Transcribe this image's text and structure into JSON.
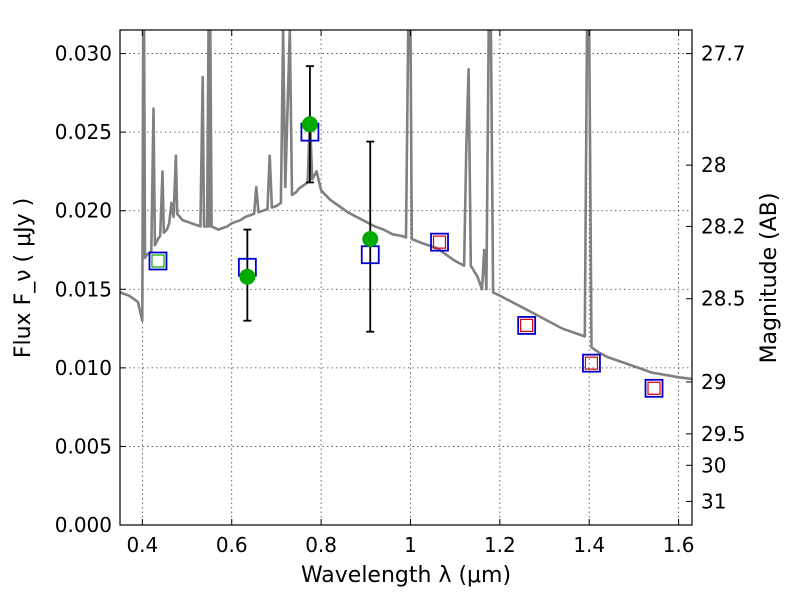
{
  "chart_data": {
    "type": "scatter",
    "xlabel": "Wavelength  λ (μm)",
    "ylabel": "Flux  F_ν  ( μJy )",
    "ylabel_right": "Magnitude (AB)",
    "xlim": [
      0.35,
      1.63
    ],
    "ylim": [
      0.0,
      0.0315
    ],
    "grid": true,
    "x_ticks": [
      0.4,
      0.6,
      0.8,
      1.0,
      1.2,
      1.4,
      1.6
    ],
    "x_tick_labels": [
      "0.4",
      "0.6",
      "0.8",
      "1",
      "1.2",
      "1.4",
      "1.6"
    ],
    "y_ticks": [
      0.0,
      0.005,
      0.01,
      0.015,
      0.02,
      0.025,
      0.03
    ],
    "y_tick_labels": [
      "0.000",
      "0.005",
      "0.010",
      "0.015",
      "0.020",
      "0.025",
      "0.030"
    ],
    "right_ticks": [
      {
        "label": "27.7",
        "flux": 0.03
      },
      {
        "label": "28",
        "flux": 0.0229
      },
      {
        "label": "28.2",
        "flux": 0.019
      },
      {
        "label": "28.5",
        "flux": 0.0144
      },
      {
        "label": "29",
        "flux": 0.0091
      },
      {
        "label": "29.5",
        "flux": 0.0058
      },
      {
        "label": "30",
        "flux": 0.0038
      },
      {
        "label": "31",
        "flux": 0.0015
      }
    ],
    "colors": {
      "model": "#808080",
      "observed": "#00aa00",
      "errorbar": "#000000",
      "model_photometry_box": "#0000cc",
      "inner_box_green": "#00aa00",
      "inner_box_red": "#dd0000"
    },
    "series": [
      {
        "name": "model_spectrum",
        "type": "line",
        "points": [
          [
            0.35,
            0.0148
          ],
          [
            0.36,
            0.0147
          ],
          [
            0.37,
            0.0146
          ],
          [
            0.38,
            0.0144
          ],
          [
            0.39,
            0.0142
          ],
          [
            0.395,
            0.0136
          ],
          [
            0.4,
            0.013
          ],
          [
            0.402,
            0.0315
          ],
          [
            0.404,
            0.0315
          ],
          [
            0.406,
            0.017
          ],
          [
            0.41,
            0.0172
          ],
          [
            0.42,
            0.0174
          ],
          [
            0.425,
            0.0265
          ],
          [
            0.428,
            0.0178
          ],
          [
            0.435,
            0.0182
          ],
          [
            0.44,
            0.0184
          ],
          [
            0.445,
            0.0225
          ],
          [
            0.448,
            0.0186
          ],
          [
            0.455,
            0.0188
          ],
          [
            0.46,
            0.0192
          ],
          [
            0.465,
            0.0205
          ],
          [
            0.47,
            0.0196
          ],
          [
            0.475,
            0.0235
          ],
          [
            0.478,
            0.0198
          ],
          [
            0.49,
            0.0194
          ],
          [
            0.5,
            0.0193
          ],
          [
            0.51,
            0.0192
          ],
          [
            0.52,
            0.0191
          ],
          [
            0.53,
            0.019
          ],
          [
            0.535,
            0.0285
          ],
          [
            0.538,
            0.019
          ],
          [
            0.545,
            0.019
          ],
          [
            0.548,
            0.0315
          ],
          [
            0.55,
            0.019
          ],
          [
            0.552,
            0.0315
          ],
          [
            0.555,
            0.019
          ],
          [
            0.57,
            0.0188
          ],
          [
            0.59,
            0.019
          ],
          [
            0.6,
            0.0192
          ],
          [
            0.61,
            0.0193
          ],
          [
            0.62,
            0.0194
          ],
          [
            0.63,
            0.0196
          ],
          [
            0.64,
            0.0197
          ],
          [
            0.65,
            0.0198
          ],
          [
            0.655,
            0.0215
          ],
          [
            0.66,
            0.0199
          ],
          [
            0.67,
            0.02
          ],
          [
            0.68,
            0.0201
          ],
          [
            0.685,
            0.0235
          ],
          [
            0.69,
            0.0202
          ],
          [
            0.7,
            0.0203
          ],
          [
            0.71,
            0.0205
          ],
          [
            0.715,
            0.0315
          ],
          [
            0.72,
            0.0215
          ],
          [
            0.73,
            0.0315
          ],
          [
            0.735,
            0.021
          ],
          [
            0.745,
            0.0212
          ],
          [
            0.75,
            0.0214
          ],
          [
            0.76,
            0.0216
          ],
          [
            0.77,
            0.0218
          ],
          [
            0.775,
            0.026
          ],
          [
            0.78,
            0.022
          ],
          [
            0.79,
            0.0225
          ],
          [
            0.8,
            0.0213
          ],
          [
            0.82,
            0.0207
          ],
          [
            0.84,
            0.0203
          ],
          [
            0.86,
            0.0199
          ],
          [
            0.88,
            0.0196
          ],
          [
            0.9,
            0.0193
          ],
          [
            0.92,
            0.019
          ],
          [
            0.94,
            0.0188
          ],
          [
            0.96,
            0.0185
          ],
          [
            0.98,
            0.0184
          ],
          [
            0.99,
            0.0183
          ],
          [
            0.995,
            0.0315
          ],
          [
            1.0,
            0.0315
          ],
          [
            1.003,
            0.0182
          ],
          [
            1.02,
            0.018
          ],
          [
            1.04,
            0.0178
          ],
          [
            1.06,
            0.0176
          ],
          [
            1.08,
            0.0172
          ],
          [
            1.1,
            0.0168
          ],
          [
            1.12,
            0.0165
          ],
          [
            1.125,
            0.024
          ],
          [
            1.13,
            0.029
          ],
          [
            1.135,
            0.0165
          ],
          [
            1.15,
            0.0158
          ],
          [
            1.16,
            0.015
          ],
          [
            1.165,
            0.0175
          ],
          [
            1.17,
            0.015
          ],
          [
            1.175,
            0.0315
          ],
          [
            1.18,
            0.0315
          ],
          [
            1.185,
            0.0148
          ],
          [
            1.2,
            0.0146
          ],
          [
            1.22,
            0.0143
          ],
          [
            1.24,
            0.014
          ],
          [
            1.26,
            0.0137
          ],
          [
            1.28,
            0.0134
          ],
          [
            1.3,
            0.0131
          ],
          [
            1.32,
            0.0128
          ],
          [
            1.34,
            0.0125
          ],
          [
            1.36,
            0.0123
          ],
          [
            1.38,
            0.0121
          ],
          [
            1.39,
            0.012
          ],
          [
            1.395,
            0.0315
          ],
          [
            1.4,
            0.0315
          ],
          [
            1.405,
            0.0113
          ],
          [
            1.42,
            0.011
          ],
          [
            1.44,
            0.0107
          ],
          [
            1.46,
            0.0105
          ],
          [
            1.48,
            0.0103
          ],
          [
            1.5,
            0.0101
          ],
          [
            1.52,
            0.0099
          ],
          [
            1.54,
            0.0097
          ],
          [
            1.56,
            0.0096
          ],
          [
            1.58,
            0.0095
          ],
          [
            1.6,
            0.0094
          ],
          [
            1.63,
            0.0093
          ]
        ]
      },
      {
        "name": "observed_flux",
        "type": "scatter_errorbar",
        "points": [
          {
            "x": 0.635,
            "y": 0.0158,
            "err_low": 0.013,
            "err_high": 0.0188
          },
          {
            "x": 0.775,
            "y": 0.0255,
            "err_low": 0.0218,
            "err_high": 0.0292
          },
          {
            "x": 0.91,
            "y": 0.0182,
            "err_low": 0.0123,
            "err_high": 0.0244
          }
        ]
      },
      {
        "name": "model_photometry",
        "type": "square_markers",
        "points": [
          {
            "x": 0.435,
            "y": 0.0168,
            "inner": "green"
          },
          {
            "x": 0.635,
            "y": 0.0164,
            "inner": "none"
          },
          {
            "x": 0.775,
            "y": 0.025,
            "inner": "none"
          },
          {
            "x": 0.91,
            "y": 0.0172,
            "inner": "none"
          },
          {
            "x": 1.065,
            "y": 0.018,
            "inner": "red"
          },
          {
            "x": 1.26,
            "y": 0.0127,
            "inner": "red"
          },
          {
            "x": 1.405,
            "y": 0.0103,
            "inner": "red"
          },
          {
            "x": 1.545,
            "y": 0.0087,
            "inner": "red"
          }
        ]
      }
    ]
  }
}
